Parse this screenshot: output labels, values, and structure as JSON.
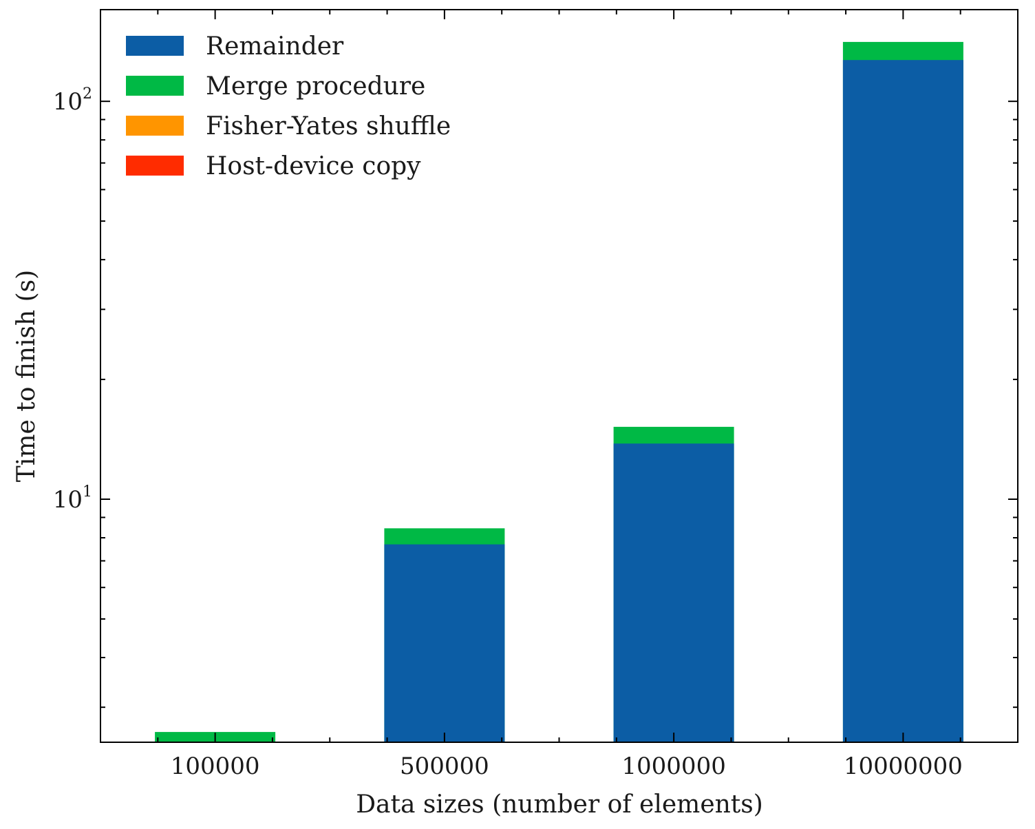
{
  "chart_data": {
    "type": "bar",
    "stacked": true,
    "title": "",
    "xlabel": "Data sizes (number of elements)",
    "ylabel": "Time to finish (s)",
    "y_scale": "log",
    "ylim": [
      2.45,
      170
    ],
    "y_major_ticks": [
      {
        "value": 10,
        "base": "10",
        "exponent": "1"
      },
      {
        "value": 100,
        "base": "10",
        "exponent": "2"
      }
    ],
    "categories": [
      "100000",
      "500000",
      "1000000",
      "10000000"
    ],
    "series": [
      {
        "name": "Remainder",
        "color": "#0C5DA5",
        "values": [
          0.0,
          7.7,
          13.8,
          127.0
        ]
      },
      {
        "name": "Merge procedure",
        "color": "#00B945",
        "values": [
          2.6,
          8.45,
          15.2,
          141.0
        ]
      },
      {
        "name": "Fisher-Yates shuffle",
        "color": "#FF9500",
        "values": [
          0,
          0,
          0,
          0
        ]
      },
      {
        "name": "Host-device copy",
        "color": "#FF2C00",
        "values": [
          0,
          0,
          0,
          0
        ]
      }
    ],
    "series_value_note": "",
    "legend_position": "top-left",
    "grid": false
  }
}
